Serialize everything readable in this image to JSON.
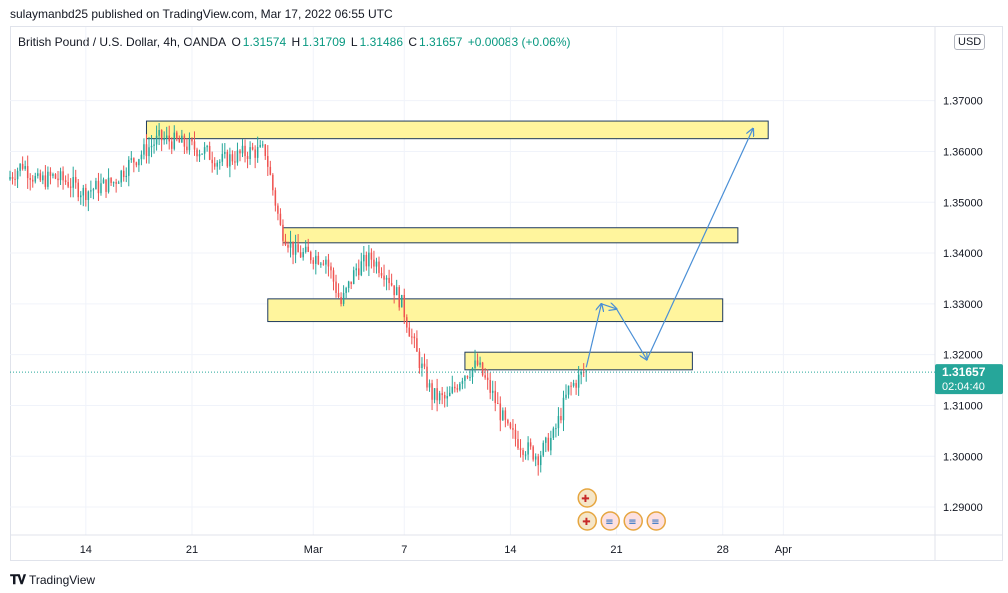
{
  "publisher": "sulaymanbd25 published on TradingView.com, Mar 17, 2022 06:55 UTC",
  "symbol": {
    "name": "British Pound / U.S. Dollar, 4h, OANDA",
    "open_label": "O",
    "open": "1.31574",
    "high_label": "H",
    "high": "1.31709",
    "low_label": "L",
    "low": "1.31486",
    "close_label": "C",
    "close": "1.31657",
    "change": "+0.00083 (+0.06%)"
  },
  "currency": "USD",
  "last_price": {
    "price": "1.31657",
    "countdown": "02:04:40",
    "value": 1.31657
  },
  "footer": {
    "brand": "TradingView"
  },
  "colors": {
    "up": "#26a69a",
    "down": "#ef5350",
    "zone_fill": "#fff59d",
    "zone_border": "#1e3a5f",
    "arrow": "#4a8fd6",
    "price_tag": "#26a69a"
  },
  "chart_data": {
    "type": "candlestick",
    "y_ticks": [
      "1.29000",
      "1.30000",
      "1.31000",
      "1.32000",
      "1.33000",
      "1.34000",
      "1.35000",
      "1.36000",
      "1.37000"
    ],
    "y_tick_values": [
      1.29,
      1.3,
      1.31,
      1.32,
      1.33,
      1.34,
      1.35,
      1.36,
      1.37
    ],
    "ylim": [
      1.2845,
      1.3845
    ],
    "x_ticks": [
      "14",
      "21",
      "Mar",
      "7",
      "14",
      "21",
      "28",
      "Apr"
    ],
    "x_tick_dates": [
      "2022-02-14",
      "2022-02-21",
      "2022-03-01",
      "2022-03-07",
      "2022-03-14",
      "2022-03-21",
      "2022-03-28",
      "2022-04-01"
    ],
    "xlim": [
      "2022-02-09",
      "2022-04-11"
    ],
    "candle_interval": "4h",
    "path_keypoints": [
      [
        "2022-02-09",
        1.3545
      ],
      [
        "2022-02-10",
        1.3575
      ],
      [
        "2022-02-11",
        1.354
      ],
      [
        "2022-02-12",
        1.355
      ],
      [
        "2022-02-13",
        1.354
      ],
      [
        "2022-02-14",
        1.352
      ],
      [
        "2022-02-15",
        1.353
      ],
      [
        "2022-02-16",
        1.354
      ],
      [
        "2022-02-17",
        1.3575
      ],
      [
        "2022-02-18",
        1.36
      ],
      [
        "2022-02-19",
        1.3625
      ],
      [
        "2022-02-20",
        1.362
      ],
      [
        "2022-02-21",
        1.361
      ],
      [
        "2022-02-22",
        1.36
      ],
      [
        "2022-02-23",
        1.358
      ],
      [
        "2022-02-24",
        1.359
      ],
      [
        "2022-02-25",
        1.36
      ],
      [
        "2022-02-26",
        1.36
      ],
      [
        "2022-02-27",
        1.345
      ],
      [
        "2022-02-28",
        1.34
      ],
      [
        "2022-03-01",
        1.3395
      ],
      [
        "2022-03-02",
        1.339
      ],
      [
        "2022-03-03",
        1.33
      ],
      [
        "2022-03-04",
        1.337
      ],
      [
        "2022-03-05",
        1.339
      ],
      [
        "2022-03-06",
        1.336
      ],
      [
        "2022-03-07",
        1.33
      ],
      [
        "2022-03-08",
        1.32
      ],
      [
        "2022-03-09",
        1.312
      ],
      [
        "2022-03-10",
        1.311
      ],
      [
        "2022-03-11",
        1.316
      ],
      [
        "2022-03-12",
        1.318
      ],
      [
        "2022-03-13",
        1.312
      ],
      [
        "2022-03-14",
        1.305
      ],
      [
        "2022-03-15",
        1.302
      ],
      [
        "2022-03-16",
        1.3
      ],
      [
        "2022-03-17",
        1.304
      ],
      [
        "2022-03-18",
        1.313
      ],
      [
        "2022-03-19",
        1.3165
      ]
    ],
    "zones": [
      {
        "from": "2022-02-18",
        "to": "2022-03-31",
        "top": 1.365,
        "bottom": 1.3635
      },
      {
        "from": "2022-02-27",
        "to": "2022-03-29",
        "top": 1.344,
        "bottom": 1.343
      },
      {
        "from": "2022-02-26",
        "to": "2022-03-28",
        "top": 1.33,
        "bottom": 1.3275
      },
      {
        "from": "2022-03-11",
        "to": "2022-03-26",
        "top": 1.3195,
        "bottom": 1.318
      }
    ],
    "projection_path": [
      [
        "2022-03-19",
        1.3175
      ],
      [
        "2022-03-20",
        1.33
      ],
      [
        "2022-03-21",
        1.329
      ],
      [
        "2022-03-23",
        1.319
      ],
      [
        "2022-03-30",
        1.3645
      ]
    ],
    "event_markers": [
      {
        "date": "2022-03-19",
        "flags": [
          "GB"
        ]
      },
      {
        "date": "2022-03-19",
        "flags": [
          "GB",
          "US",
          "US",
          "US"
        ]
      }
    ]
  }
}
